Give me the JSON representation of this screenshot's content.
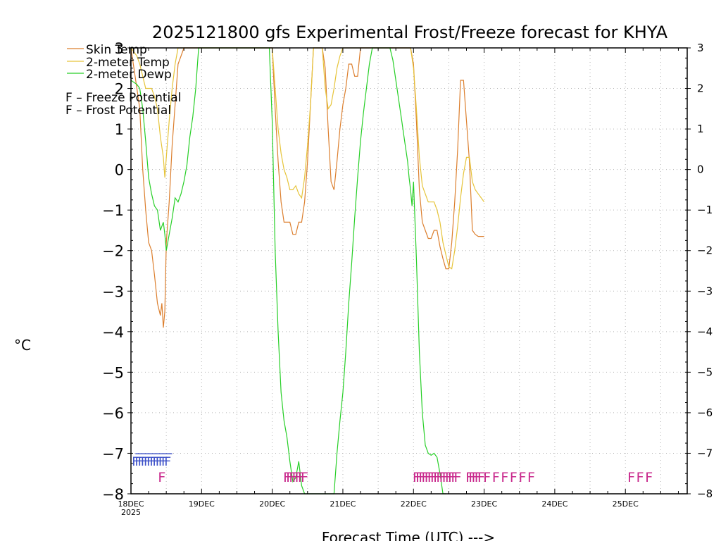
{
  "chart_data": {
    "type": "line",
    "title": "2025121800 gfs Experimental Frost/Freeze forecast for KHYA",
    "xlabel": "Forecast Time (UTC) --->",
    "ylabel": "°C",
    "ylim": [
      -8,
      3
    ],
    "xlim_hours": [
      0,
      189
    ],
    "y_ticks": [
      "−8",
      "−7",
      "−6",
      "−5",
      "−4",
      "−3",
      "−2",
      "−1",
      "0",
      "1",
      "2",
      "3"
    ],
    "y_tick_values": [
      -8,
      -7,
      -6,
      -5,
      -4,
      -3,
      -2,
      -1,
      0,
      1,
      2,
      3
    ],
    "right_ticks": [
      "−8",
      "−7",
      "−6",
      "−5",
      "−4",
      "−3",
      "−2",
      "−1",
      "0",
      "1",
      "2",
      "3"
    ],
    "x_ticks": [
      {
        "label": "18DEC",
        "hour": 0
      },
      {
        "label": "19DEC",
        "hour": 24
      },
      {
        "label": "20DEC",
        "hour": 48
      },
      {
        "label": "21DEC",
        "hour": 72
      },
      {
        "label": "22DEC",
        "hour": 96
      },
      {
        "label": "23DEC",
        "hour": 120
      },
      {
        "label": "24DEC",
        "hour": 144
      },
      {
        "label": "25DEC",
        "hour": 168
      }
    ],
    "year_label": "2025",
    "grid": true,
    "legend": {
      "placement": "top-left",
      "items": [
        {
          "label": "Skin Temp",
          "color": "#dc7f2e"
        },
        {
          "label": "2-meter Temp",
          "color": "#e6c43a"
        },
        {
          "label": "2-meter Dewp",
          "color": "#27cf27"
        }
      ],
      "freeze_text": "F – Freeze Potential",
      "frost_text": "F – Frost Potential",
      "freeze_color": "#c8288c",
      "frost_color": "#3c50c8"
    },
    "series": [
      {
        "name": "Skin Temp",
        "color": "#dc7f2e",
        "x": [
          0,
          2,
          3,
          4,
          5,
          6,
          7,
          8,
          9,
          10,
          10.5,
          11,
          11.5,
          12,
          13,
          14,
          15,
          16,
          17,
          18,
          19,
          20,
          21,
          22,
          23,
          48,
          49,
          50,
          51,
          52,
          53,
          54,
          55,
          56,
          57,
          58,
          59,
          60,
          61,
          62,
          63,
          64,
          65,
          66,
          67,
          68,
          69,
          70,
          71,
          72,
          73,
          74,
          75,
          76,
          77,
          78,
          79,
          80,
          81,
          82,
          83,
          84,
          95,
          96,
          97,
          98,
          99,
          100,
          101,
          102,
          103,
          104,
          105,
          106,
          107,
          108,
          109,
          110,
          111,
          112,
          113,
          114,
          115,
          116,
          117,
          118,
          119,
          120
        ],
        "y": [
          3,
          2,
          1.5,
          0,
          -1,
          -1.8,
          -2,
          -2.6,
          -3.3,
          -3.6,
          -3.3,
          -3.9,
          -3.5,
          -1.8,
          -0.8,
          0.6,
          1.6,
          2.6,
          2.8,
          3,
          3,
          3,
          3,
          3,
          3,
          3,
          1.5,
          0.2,
          -0.8,
          -1.3,
          -1.3,
          -1.3,
          -1.6,
          -1.6,
          -1.3,
          -1.3,
          -0.8,
          0.2,
          1.6,
          3,
          3,
          3,
          3,
          2.5,
          1,
          -0.3,
          -0.5,
          0.2,
          1,
          1.6,
          2,
          2.6,
          2.6,
          2.3,
          2.3,
          3,
          3,
          3,
          3,
          3,
          3,
          3,
          3,
          2.6,
          1.2,
          -0.5,
          -1.3,
          -1.5,
          -1.7,
          -1.7,
          -1.5,
          -1.5,
          -1.9,
          -2.2,
          -2.45,
          -2.45,
          -1.8,
          -0.8,
          0.5,
          2.2,
          2.2,
          1.2,
          0.2,
          -1.5,
          -1.6,
          -1.65,
          -1.65,
          -1.65
        ]
      },
      {
        "name": "2-meter Temp",
        "color": "#e6c43a",
        "x": [
          0,
          2,
          3,
          4,
          5,
          6,
          7,
          8,
          9,
          10,
          11,
          11.5,
          12,
          13,
          14,
          15,
          16,
          17,
          18,
          19,
          20,
          21,
          22,
          23,
          48,
          49,
          50,
          51,
          52,
          53,
          54,
          55,
          56,
          57,
          58,
          59,
          60,
          61,
          62,
          63,
          64,
          65,
          66,
          67,
          68,
          69,
          70,
          71,
          72,
          73,
          74,
          75,
          76,
          77,
          78,
          79,
          80,
          81,
          82,
          83,
          84,
          95,
          96,
          97,
          98,
          99,
          100,
          101,
          102,
          103,
          104,
          105,
          106,
          107,
          108,
          109,
          110,
          111,
          112,
          113,
          114,
          115,
          116,
          117,
          118,
          119,
          120
        ],
        "y": [
          3,
          2.8,
          2.6,
          2.3,
          2,
          2,
          2,
          1.8,
          1.5,
          0.8,
          0.3,
          -0.2,
          0.3,
          1.2,
          2,
          2.6,
          3,
          3,
          3,
          3,
          3,
          3,
          3,
          3,
          3,
          2,
          1,
          0.4,
          0,
          -0.2,
          -0.5,
          -0.5,
          -0.4,
          -0.6,
          -0.7,
          -0.2,
          0.6,
          1.6,
          3,
          3,
          3,
          3,
          2,
          1.5,
          1.6,
          2,
          2.5,
          2.8,
          3,
          3,
          3,
          3,
          3,
          3,
          3,
          3,
          3,
          3,
          3,
          3,
          3,
          3,
          2.5,
          1.5,
          0.3,
          -0.4,
          -0.6,
          -0.8,
          -0.8,
          -0.8,
          -1,
          -1.3,
          -1.8,
          -2.1,
          -2.4,
          -2.45,
          -2,
          -1.4,
          -0.7,
          -0.1,
          0.3,
          0.3,
          -0.3,
          -0.5,
          -0.6,
          -0.7,
          -0.8
        ]
      },
      {
        "name": "2-meter Dewp",
        "color": "#27cf27",
        "x": [
          0,
          2,
          3,
          4,
          5,
          6,
          7,
          8,
          9,
          10,
          11,
          11.5,
          12,
          13,
          14,
          15,
          16,
          17,
          18,
          19,
          20,
          21,
          22,
          23,
          47,
          48,
          49,
          50,
          51,
          52,
          53,
          54,
          55,
          56,
          57,
          58,
          59,
          60,
          61,
          62,
          63,
          64,
          65,
          66,
          67,
          68,
          69,
          70,
          71,
          72,
          73,
          74,
          75,
          76,
          77,
          78,
          79,
          80,
          81,
          82,
          83,
          84,
          85,
          86,
          87,
          88,
          89,
          90,
          91,
          92,
          93,
          94,
          94.5,
          95,
          95.5,
          96,
          97,
          98,
          99,
          100,
          101,
          102,
          103,
          104,
          105,
          106,
          107
        ],
        "y": [
          2.2,
          2.1,
          2,
          1.5,
          0.7,
          -0.2,
          -0.6,
          -0.9,
          -1,
          -1.5,
          -1.3,
          -1.6,
          -2,
          -1.6,
          -1.2,
          -0.7,
          -0.8,
          -0.6,
          -0.3,
          0.1,
          0.8,
          1.3,
          2,
          3,
          3,
          1.2,
          -2,
          -4,
          -5.5,
          -6.2,
          -6.6,
          -7.2,
          -7.7,
          -7.6,
          -7.2,
          -7.8,
          -8,
          -8,
          -8,
          -8,
          -8,
          -8,
          -8,
          -8,
          -8,
          -8,
          -8,
          -7,
          -6.2,
          -5.5,
          -4.5,
          -3.3,
          -2.3,
          -1.2,
          -0.2,
          0.7,
          1.4,
          2,
          2.6,
          3,
          3,
          3,
          3,
          3,
          3,
          3,
          2.7,
          2.2,
          1.7,
          1.2,
          0.7,
          0.2,
          -0.2,
          -0.5,
          -0.9,
          -0.3,
          -2.2,
          -4.5,
          -6,
          -6.8,
          -7,
          -7.05,
          -7,
          -7.1,
          -7.5,
          -8,
          -8
        ]
      }
    ],
    "frost_markers": {
      "letter": "F",
      "rows": [
        {
          "y": -7.15,
          "x_start": 1.5,
          "x_end": 12.5
        }
      ]
    },
    "freeze_markers": {
      "letter": "F",
      "rows": [
        {
          "y": -7.55,
          "hours": [
            10.5
          ]
        },
        {
          "y": -7.55,
          "hours": [
            53,
            54,
            55,
            56,
            57,
            58,
            59
          ]
        },
        {
          "y": -7.55,
          "hours": [
            97,
            98,
            99,
            100,
            101,
            102,
            103,
            104,
            105,
            106,
            107,
            108,
            109,
            110,
            111
          ]
        },
        {
          "y": -7.55,
          "hours": [
            115,
            116,
            117,
            118,
            119,
            121,
            124,
            127,
            130,
            133,
            136
          ]
        },
        {
          "y": -7.55,
          "hours": [
            170,
            173,
            176
          ]
        }
      ]
    }
  }
}
